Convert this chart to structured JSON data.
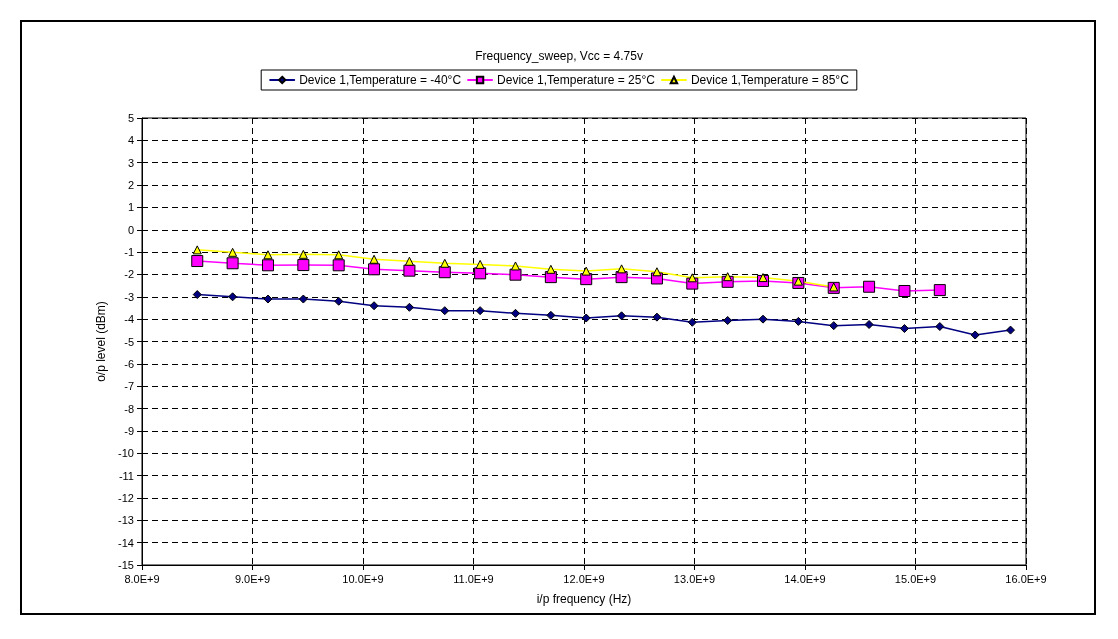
{
  "chart_data": {
    "type": "line",
    "title": "Frequency_sweep, Vcc = 4.75v",
    "xlabel": "i/p frequency (Hz)",
    "ylabel": "o/p level (dBm)",
    "x": [
      8500000000,
      8820000000,
      9140000000,
      9460000000,
      9780000000,
      10100000000,
      10420000000,
      10740000000,
      11060000000,
      11380000000,
      11700000000,
      12020000000,
      12340000000,
      12660000000,
      12980000000,
      13300000000,
      13620000000,
      13940000000,
      14260000000,
      14580000000,
      14900000000,
      15220000000,
      15540000000,
      15860000000
    ],
    "series": [
      {
        "name": "Device 1,Temperature = -40°C",
        "color": "#000080",
        "marker": "diamond",
        "values": [
          -2.9,
          -3.0,
          -3.1,
          -3.1,
          -3.2,
          -3.4,
          -3.47,
          -3.62,
          -3.62,
          -3.74,
          -3.83,
          -3.95,
          -3.85,
          -3.91,
          -4.14,
          -4.06,
          -4.0,
          -4.1,
          -4.29,
          -4.24,
          -4.42,
          -4.33,
          -4.71,
          -4.49
        ]
      },
      {
        "name": "Device 1,Temperature = 25°C",
        "color": "#ff00ff",
        "marker": "square",
        "values": [
          -1.4,
          -1.5,
          -1.59,
          -1.58,
          -1.59,
          -1.77,
          -1.83,
          -1.9,
          -1.95,
          -2.01,
          -2.12,
          -2.21,
          -2.12,
          -2.18,
          -2.41,
          -2.33,
          -2.29,
          -2.38,
          -2.6,
          -2.55,
          -2.74,
          -2.7,
          null,
          null
        ]
      },
      {
        "name": "Device 1,Temperature = 85°C",
        "color": "#ffff00",
        "marker": "triangle",
        "values": [
          -0.9,
          -1.01,
          -1.12,
          -1.1,
          -1.12,
          -1.32,
          -1.41,
          -1.5,
          -1.55,
          -1.62,
          -1.77,
          -1.85,
          -1.75,
          -1.88,
          -2.15,
          -2.1,
          -2.14,
          -2.3,
          -2.56,
          null,
          null,
          null,
          null,
          null
        ]
      }
    ],
    "xlim": [
      8000000000,
      16000000000
    ],
    "xticks": [
      {
        "value": 8000000000,
        "label": "8.0E+9"
      },
      {
        "value": 9000000000,
        "label": "9.0E+9"
      },
      {
        "value": 10000000000,
        "label": "10.0E+9"
      },
      {
        "value": 11000000000,
        "label": "11.0E+9"
      },
      {
        "value": 12000000000,
        "label": "12.0E+9"
      },
      {
        "value": 13000000000,
        "label": "13.0E+9"
      },
      {
        "value": 14000000000,
        "label": "14.0E+9"
      },
      {
        "value": 15000000000,
        "label": "15.0E+9"
      },
      {
        "value": 16000000000,
        "label": "16.0E+9"
      }
    ],
    "ylim": [
      -15,
      5
    ],
    "yticks": [
      -15,
      -14,
      -13,
      -12,
      -11,
      -10,
      -9,
      -8,
      -7,
      -6,
      -5,
      -4,
      -3,
      -2,
      -1,
      0,
      1,
      2,
      3,
      4,
      5
    ],
    "grid": true,
    "legend": "top",
    "line_style": "solid"
  }
}
